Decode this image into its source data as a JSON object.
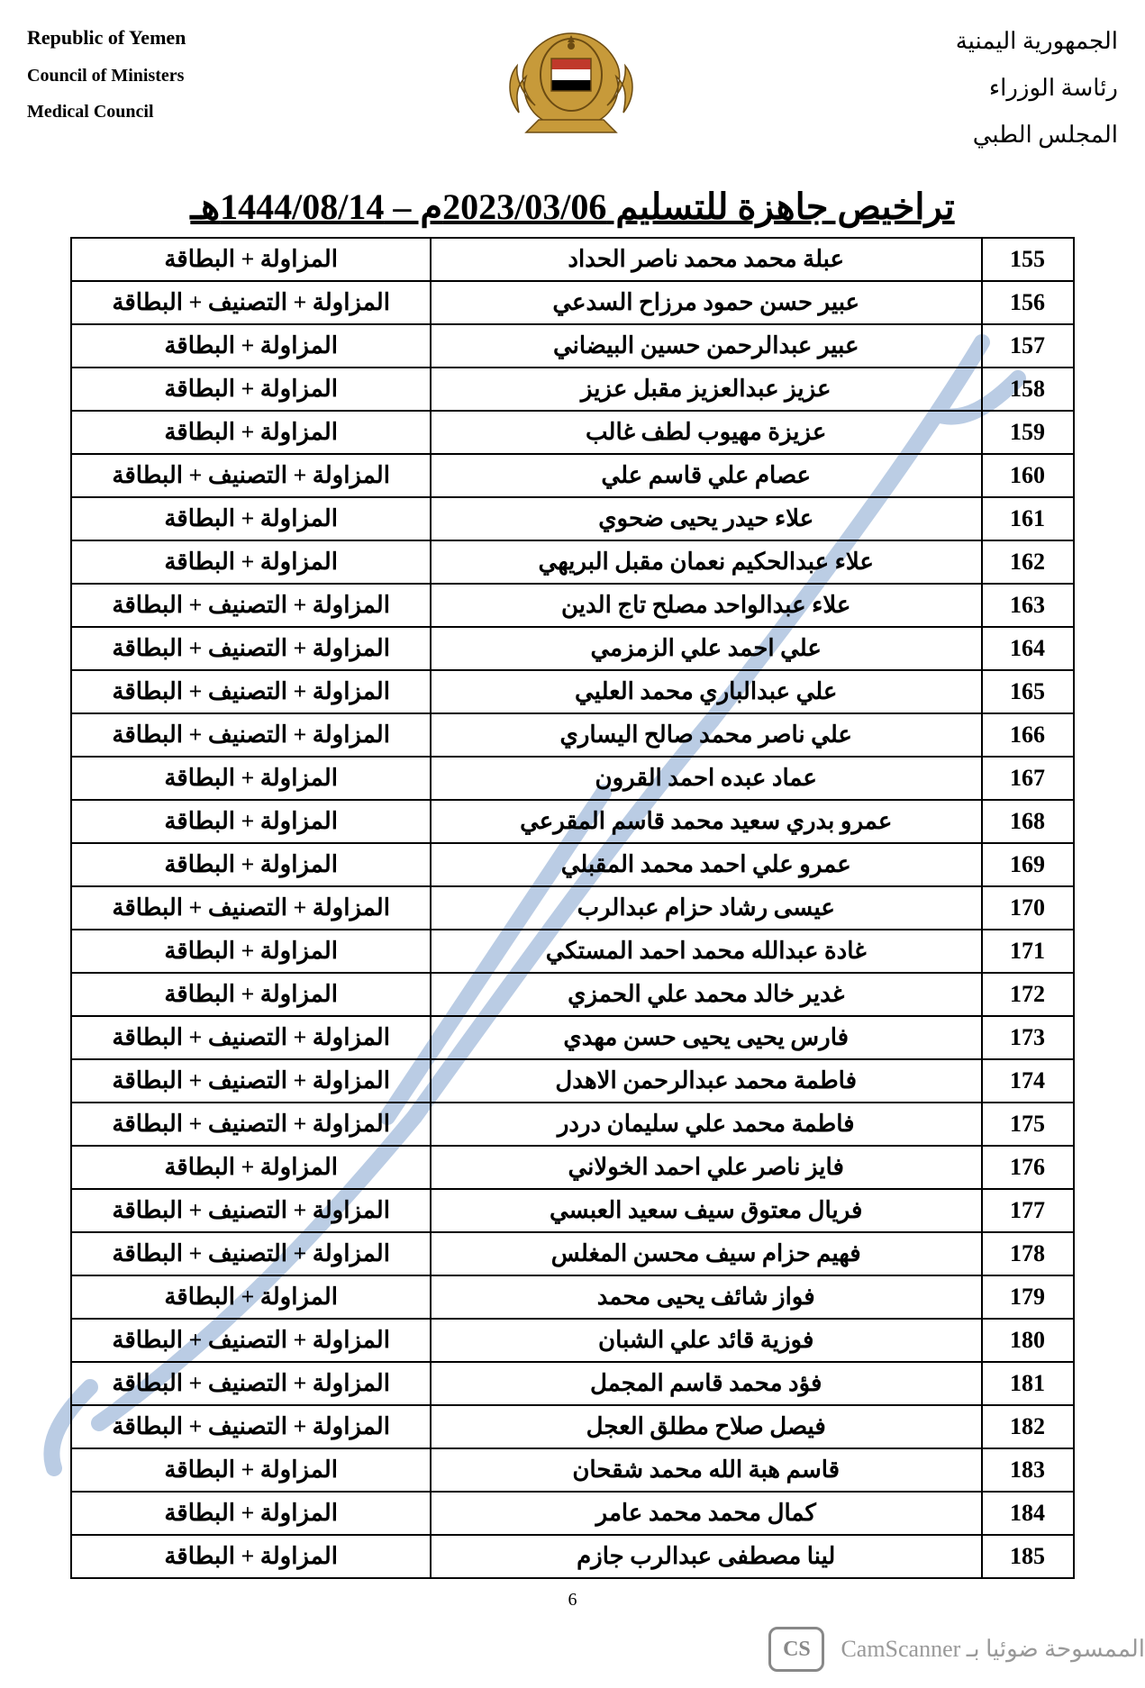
{
  "header": {
    "left": {
      "line1": "Republic of Yemen",
      "line2": "Council of Ministers",
      "line3": "Medical Council"
    },
    "right": {
      "line1": "الجمهورية اليمنية",
      "line2": "رئاسة الوزراء",
      "line3": "المجلس الطبي"
    }
  },
  "emblem_colors": {
    "gold": "#c79a3a",
    "red": "#c0392b",
    "white": "#ffffff",
    "dark": "#6b4b12"
  },
  "title": "تراخيص جاهزة للتسليم 2023/03/06م – 1444/08/14هـ",
  "doc_labels": {
    "a": "المزاولة + البطاقة",
    "b": "المزاولة + التصنيف + البطاقة"
  },
  "rows": [
    {
      "n": 155,
      "name": "عبلة محمد محمد ناصر الحداد",
      "docs": "a"
    },
    {
      "n": 156,
      "name": "عبير حسن حمود مرزاح السدعي",
      "docs": "b"
    },
    {
      "n": 157,
      "name": "عبير عبدالرحمن حسين البيضاني",
      "docs": "a"
    },
    {
      "n": 158,
      "name": "عزيز عبدالعزيز مقبل عزيز",
      "docs": "a"
    },
    {
      "n": 159,
      "name": "عزيزة مهيوب لطف غالب",
      "docs": "a"
    },
    {
      "n": 160,
      "name": "عصام علي قاسم علي",
      "docs": "b"
    },
    {
      "n": 161,
      "name": "علاء حيدر يحيى ضحوي",
      "docs": "a"
    },
    {
      "n": 162,
      "name": "علاء عبدالحكيم نعمان مقبل البريهي",
      "docs": "a"
    },
    {
      "n": 163,
      "name": "علاء عبدالواحد مصلح تاج الدين",
      "docs": "b"
    },
    {
      "n": 164,
      "name": "علي احمد علي الزمزمي",
      "docs": "b"
    },
    {
      "n": 165,
      "name": "علي عبدالباري محمد العليي",
      "docs": "b"
    },
    {
      "n": 166,
      "name": "علي ناصر محمد صالح اليساري",
      "docs": "b"
    },
    {
      "n": 167,
      "name": "عماد عبده احمد القرون",
      "docs": "a"
    },
    {
      "n": 168,
      "name": "عمرو بدري سعيد محمد قاسم المقرعي",
      "docs": "a"
    },
    {
      "n": 169,
      "name": "عمرو علي احمد محمد المقبلي",
      "docs": "a"
    },
    {
      "n": 170,
      "name": "عيسى رشاد حزام عبدالرب",
      "docs": "b"
    },
    {
      "n": 171,
      "name": "غادة عبدالله محمد احمد المستكي",
      "docs": "a"
    },
    {
      "n": 172,
      "name": "غدير خالد محمد علي الحمزي",
      "docs": "a"
    },
    {
      "n": 173,
      "name": "فارس يحيى يحيى حسن مهدي",
      "docs": "b"
    },
    {
      "n": 174,
      "name": "فاطمة محمد عبدالرحمن الاهدل",
      "docs": "b"
    },
    {
      "n": 175,
      "name": "فاطمة محمد علي سليمان دردر",
      "docs": "b"
    },
    {
      "n": 176,
      "name": "فايز ناصر علي احمد الخولاني",
      "docs": "a"
    },
    {
      "n": 177,
      "name": "فريال معتوق سيف سعيد العبسي",
      "docs": "b"
    },
    {
      "n": 178,
      "name": "فهيم حزام سيف محسن المغلس",
      "docs": "b"
    },
    {
      "n": 179,
      "name": "فواز شائف يحيى محمد",
      "docs": "a"
    },
    {
      "n": 180,
      "name": "فوزية قائد علي الشبان",
      "docs": "b"
    },
    {
      "n": 181,
      "name": "فؤد محمد قاسم المجمل",
      "docs": "b"
    },
    {
      "n": 182,
      "name": "فيصل صلاح مطلق العجل",
      "docs": "b"
    },
    {
      "n": 183,
      "name": "قاسم هبة الله محمد شقحان",
      "docs": "a"
    },
    {
      "n": 184,
      "name": "كمال محمد محمد عامر",
      "docs": "a"
    },
    {
      "n": 185,
      "name": "لينا مصطفى عبدالرب جازم",
      "docs": "a"
    }
  ],
  "page_number": "6",
  "footer": {
    "badge": "CS",
    "text_ar": "الممسوحة ضوئيا بـ",
    "app": "CamScanner"
  },
  "watermark_color": "#3b6fb3",
  "watermark_opacity": 0.35
}
